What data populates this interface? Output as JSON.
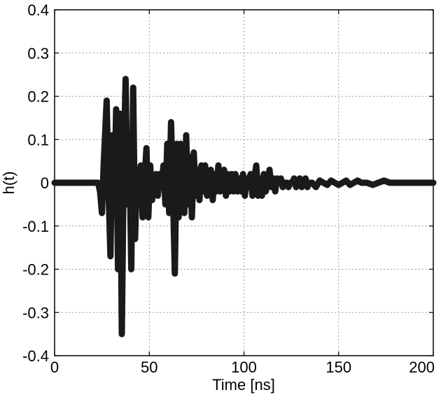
{
  "chart_data": {
    "type": "line",
    "title": "",
    "xlabel": "Time [ns]",
    "ylabel": "h(t)",
    "xlim": [
      0,
      200
    ],
    "ylim": [
      -0.4,
      0.4
    ],
    "xticks": [
      0,
      50,
      100,
      150,
      200
    ],
    "xtick_labels": [
      "0",
      "50",
      "100",
      "150",
      "200"
    ],
    "yticks": [
      0.4,
      0.3,
      0.2,
      0.1,
      0,
      -0.1,
      -0.2,
      -0.3,
      -0.4
    ],
    "ytick_labels": [
      "0.4",
      "0.3",
      "0.2",
      "0.1",
      "0",
      "-0.1",
      "-0.2",
      "-0.3",
      "-0.4"
    ],
    "grid": true,
    "line_color": "#1a1a1a",
    "series": [
      {
        "x": [
          0,
          20,
          23,
          24,
          25,
          26,
          27.5,
          28.5,
          29.5,
          30.5,
          31.5,
          32.5,
          33.5,
          34.5,
          35.5,
          36.5,
          37.5,
          38.5,
          39.5,
          40.5,
          41.5,
          42.5,
          43.5,
          44.5,
          45.5,
          46.5,
          47.5,
          48.5,
          49.5,
          50.5,
          51.5,
          52.5,
          53.5,
          54.5,
          55.5,
          56.5,
          57.5,
          58.5,
          59.5,
          60.5,
          61.5,
          62.5,
          63.5,
          64.5,
          65.5,
          66.5,
          67.5,
          68.5,
          69.5,
          70.5,
          71.5,
          72.5,
          73.5,
          74.5,
          75.5,
          76.5,
          77.5,
          78.5,
          79.5,
          80.5,
          81.5,
          82.5,
          83.5,
          84.5,
          85.5,
          86.5,
          87.5,
          88.5,
          89.5,
          90.5,
          91.5,
          92.5,
          93.5,
          94.5,
          95.5,
          96.5,
          97.5,
          98.5,
          99.5,
          100.5,
          101.5,
          102.5,
          103.5,
          104.5,
          105.5,
          106.5,
          107.5,
          108.5,
          109.5,
          110.5,
          111.5,
          112.5,
          113.5,
          114.5,
          115.5,
          116.5,
          117.5,
          118.5,
          119.5,
          120.5,
          121.5,
          122.5,
          123.5,
          124.5,
          125.5,
          126.5,
          127.5,
          128.5,
          129.5,
          130.5,
          131.5,
          132.5,
          133.5,
          134.5,
          136,
          138,
          140,
          142,
          144,
          146,
          148,
          150,
          152,
          154,
          156,
          158,
          160,
          162,
          165,
          168,
          171,
          174,
          177,
          180,
          185,
          190,
          195,
          200
        ],
        "y": [
          0,
          0,
          0,
          -0.02,
          -0.07,
          0.05,
          0.19,
          -0.02,
          -0.17,
          0.11,
          -0.05,
          0.17,
          -0.2,
          0.16,
          -0.35,
          0.04,
          0.24,
          -0.05,
          0.09,
          -0.2,
          0.22,
          -0.13,
          0.03,
          0.01,
          0.04,
          -0.08,
          0.01,
          0.08,
          -0.08,
          0.04,
          -0.04,
          0.01,
          0.02,
          -0.03,
          0.02,
          -0.01,
          0.04,
          -0.05,
          0.09,
          -0.07,
          0.14,
          -0.02,
          -0.21,
          0.09,
          -0.08,
          0.09,
          0.0,
          -0.07,
          0.11,
          -0.05,
          0.06,
          -0.08,
          0.07,
          -0.03,
          0.03,
          -0.04,
          0.04,
          -0.02,
          0.04,
          -0.03,
          0.0,
          0.03,
          -0.04,
          0.02,
          -0.02,
          0.04,
          -0.02,
          -0.01,
          0.03,
          -0.03,
          0.02,
          -0.02,
          0.02,
          -0.02,
          0.02,
          -0.02,
          0.01,
          -0.02,
          0.02,
          -0.03,
          0.01,
          0.0,
          0.02,
          -0.03,
          0.01,
          0.04,
          -0.03,
          0.01,
          -0.03,
          0.02,
          -0.02,
          0.0,
          0.03,
          -0.01,
          0.01,
          -0.02,
          0.01,
          0.0,
          0.01,
          -0.01,
          0.0,
          0.0,
          -0.01,
          0.0,
          0.0,
          0.01,
          -0.01,
          0.0,
          0.01,
          -0.01,
          0.0,
          0.01,
          -0.01,
          0.0,
          0.0,
          -0.01,
          0.005,
          0.0,
          -0.005,
          0.005,
          0.0,
          -0.005,
          0.0,
          0.005,
          -0.005,
          0.0,
          0.005,
          0.0,
          0.0,
          -0.005,
          0.0,
          0.005,
          0.0,
          0.0,
          0.0,
          0.0,
          0.0,
          0.0
        ]
      }
    ]
  }
}
